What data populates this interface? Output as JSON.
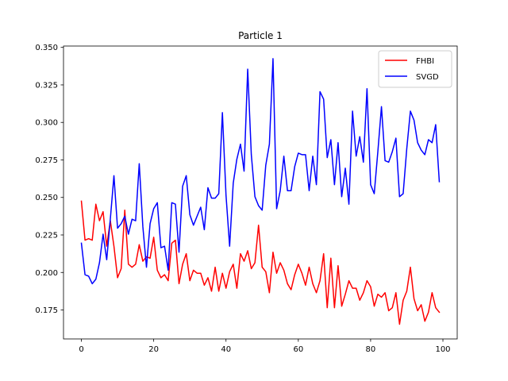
{
  "chart_data": {
    "type": "line",
    "title": "Particle 1",
    "xlabel": "",
    "ylabel": "",
    "xlim": [
      -4.95,
      103.95
    ],
    "ylim": [
      0.1557,
      0.3509
    ],
    "xticks": [
      0,
      20,
      40,
      60,
      80,
      100
    ],
    "xtick_labels": [
      "0",
      "20",
      "40",
      "60",
      "80",
      "100"
    ],
    "yticks": [
      0.175,
      0.2,
      0.225,
      0.25,
      0.275,
      0.3,
      0.325,
      0.35
    ],
    "ytick_labels": [
      "0.175",
      "0.200",
      "0.225",
      "0.250",
      "0.275",
      "0.300",
      "0.325",
      "0.350"
    ],
    "grid": false,
    "legend_position": "top-right",
    "series": [
      {
        "name": "FHBI",
        "color": "#ff0000",
        "x": [
          0,
          1,
          2,
          3,
          4,
          5,
          6,
          7,
          8,
          9,
          10,
          11,
          12,
          13,
          14,
          15,
          16,
          17,
          18,
          19,
          20,
          21,
          22,
          23,
          24,
          25,
          26,
          27,
          28,
          29,
          30,
          31,
          32,
          33,
          34,
          35,
          36,
          37,
          38,
          39,
          40,
          41,
          42,
          43,
          44,
          45,
          46,
          47,
          48,
          49,
          50,
          51,
          52,
          53,
          54,
          55,
          56,
          57,
          58,
          59,
          60,
          61,
          62,
          63,
          64,
          65,
          66,
          67,
          68,
          69,
          70,
          71,
          72,
          73,
          74,
          75,
          76,
          77,
          78,
          79,
          80,
          81,
          82,
          83,
          84,
          85,
          86,
          87,
          88,
          89,
          90,
          91,
          92,
          93,
          94,
          95,
          96,
          97,
          98,
          99
        ],
        "values": [
          0.2475,
          0.2215,
          0.2225,
          0.2215,
          0.2455,
          0.2345,
          0.2405,
          0.2175,
          0.2345,
          0.2175,
          0.1965,
          0.2025,
          0.2415,
          0.2055,
          0.2035,
          0.2055,
          0.2185,
          0.2075,
          0.2105,
          0.2095,
          0.2235,
          0.2015,
          0.1965,
          0.1985,
          0.1945,
          0.2195,
          0.2215,
          0.1925,
          0.2055,
          0.2125,
          0.1945,
          0.2015,
          0.1995,
          0.1995,
          0.1915,
          0.1965,
          0.1875,
          0.2035,
          0.1875,
          0.1995,
          0.1895,
          0.2005,
          0.2055,
          0.1895,
          0.2125,
          0.2075,
          0.2145,
          0.2025,
          0.2065,
          0.2315,
          0.2035,
          0.2005,
          0.1865,
          0.2135,
          0.1995,
          0.2065,
          0.2015,
          0.1925,
          0.1885,
          0.1985,
          0.2055,
          0.1995,
          0.1915,
          0.2035,
          0.1925,
          0.1865,
          0.1945,
          0.2125,
          0.1765,
          0.2095,
          0.1765,
          0.2045,
          0.1775,
          0.1855,
          0.1945,
          0.1895,
          0.1895,
          0.1815,
          0.1865,
          0.1945,
          0.1905,
          0.1775,
          0.1855,
          0.1835,
          0.1865,
          0.1745,
          0.1765,
          0.1865,
          0.1655,
          0.1815,
          0.1875,
          0.2035,
          0.1825,
          0.1745,
          0.1785,
          0.1675,
          0.1735,
          0.1865,
          0.1765,
          0.1735
        ]
      },
      {
        "name": "SVGD",
        "color": "#0000ff",
        "x": [
          0,
          1,
          2,
          3,
          4,
          5,
          6,
          7,
          8,
          9,
          10,
          11,
          12,
          13,
          14,
          15,
          16,
          17,
          18,
          19,
          20,
          21,
          22,
          23,
          24,
          25,
          26,
          27,
          28,
          29,
          30,
          31,
          32,
          33,
          34,
          35,
          36,
          37,
          38,
          39,
          40,
          41,
          42,
          43,
          44,
          45,
          46,
          47,
          48,
          49,
          50,
          51,
          52,
          53,
          54,
          55,
          56,
          57,
          58,
          59,
          60,
          61,
          62,
          63,
          64,
          65,
          66,
          67,
          68,
          69,
          70,
          71,
          72,
          73,
          74,
          75,
          76,
          77,
          78,
          79,
          80,
          81,
          82,
          83,
          84,
          85,
          86,
          87,
          88,
          89,
          90,
          91,
          92,
          93,
          94,
          95,
          96,
          97,
          98,
          99
        ],
        "values": [
          0.2195,
          0.1985,
          0.1975,
          0.1925,
          0.1955,
          0.2065,
          0.2255,
          0.2085,
          0.2355,
          0.2645,
          0.2295,
          0.2325,
          0.2375,
          0.2255,
          0.2355,
          0.2345,
          0.2725,
          0.2305,
          0.2035,
          0.2325,
          0.2425,
          0.2465,
          0.2165,
          0.2175,
          0.2015,
          0.2465,
          0.2455,
          0.2135,
          0.2575,
          0.2645,
          0.2385,
          0.2315,
          0.2375,
          0.2435,
          0.2285,
          0.2565,
          0.2495,
          0.2495,
          0.2525,
          0.3065,
          0.2515,
          0.2175,
          0.2595,
          0.2755,
          0.2855,
          0.2675,
          0.3355,
          0.2785,
          0.2505,
          0.2445,
          0.2415,
          0.2715,
          0.2855,
          0.3425,
          0.2425,
          0.2545,
          0.2775,
          0.2545,
          0.2545,
          0.2705,
          0.2795,
          0.2785,
          0.2785,
          0.2545,
          0.2775,
          0.2585,
          0.3205,
          0.3155,
          0.2765,
          0.2885,
          0.2585,
          0.2865,
          0.2505,
          0.2695,
          0.2455,
          0.3075,
          0.2775,
          0.2905,
          0.2735,
          0.3225,
          0.2585,
          0.2525,
          0.2805,
          0.3105,
          0.2745,
          0.2735,
          0.2805,
          0.2895,
          0.2505,
          0.2525,
          0.2825,
          0.3075,
          0.3015,
          0.2865,
          0.2815,
          0.2785,
          0.2885,
          0.2865,
          0.2985,
          0.2605
        ]
      }
    ]
  }
}
